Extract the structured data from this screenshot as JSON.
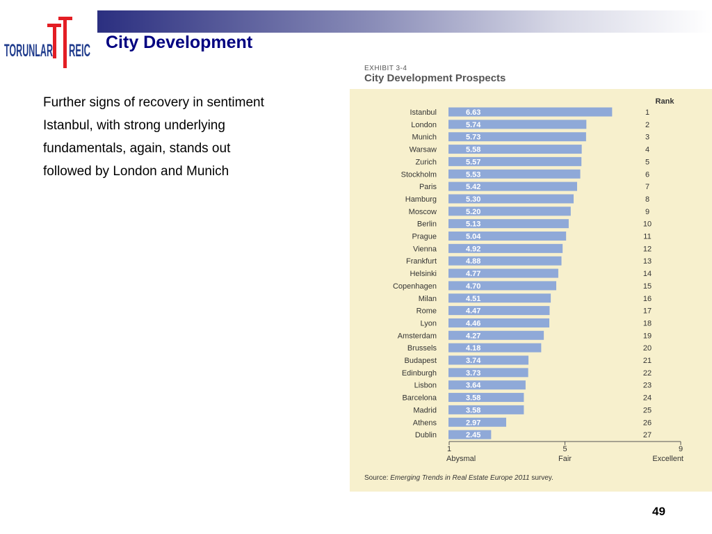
{
  "header": {
    "title": "City Development"
  },
  "logo": {
    "left_text": "TORUNLAR",
    "right_text": "REIC",
    "mark_color": "#e31e24",
    "text_color": "#1f3b8c"
  },
  "body": {
    "lines": [
      "Further signs of recovery in sentiment",
      "Istanbul, with strong underlying",
      "fundamentals, again, stands out",
      "followed by London and Munich"
    ]
  },
  "exhibit": {
    "label": "EXHIBIT 3-4",
    "title": "City Development Prospects"
  },
  "chart_data": {
    "type": "bar",
    "orientation": "horizontal",
    "categories": [
      "Istanbul",
      "London",
      "Munich",
      "Warsaw",
      "Zurich",
      "Stockholm",
      "Paris",
      "Hamburg",
      "Moscow",
      "Berlin",
      "Prague",
      "Vienna",
      "Frankfurt",
      "Helsinki",
      "Copenhagen",
      "Milan",
      "Rome",
      "Lyon",
      "Amsterdam",
      "Brussels",
      "Budapest",
      "Edinburgh",
      "Lisbon",
      "Barcelona",
      "Madrid",
      "Athens",
      "Dublin"
    ],
    "values": [
      6.63,
      5.74,
      5.73,
      5.58,
      5.57,
      5.53,
      5.42,
      5.3,
      5.2,
      5.13,
      5.04,
      4.92,
      4.88,
      4.77,
      4.7,
      4.51,
      4.47,
      4.46,
      4.27,
      4.18,
      3.74,
      3.73,
      3.64,
      3.58,
      3.58,
      2.97,
      2.45
    ],
    "value_labels": [
      "6.63",
      "5.74",
      "5.73",
      "5.58",
      "5.57",
      "5.53",
      "5.42",
      "5.30",
      "5.20",
      "5.13",
      "5.04",
      "4.92",
      "4.88",
      "4.77",
      "4.70",
      "4.51",
      "4.47",
      "4.46",
      "4.27",
      "4.18",
      "3.74",
      "3.73",
      "3.64",
      "3.58",
      "3.58",
      "2.97",
      "2.45"
    ],
    "ranks": [
      "1",
      "2",
      "3",
      "4",
      "5",
      "6",
      "7",
      "8",
      "9",
      "10",
      "11",
      "12",
      "13",
      "14",
      "15",
      "16",
      "17",
      "18",
      "19",
      "20",
      "21",
      "22",
      "23",
      "24",
      "25",
      "26",
      "27"
    ],
    "rank_header": "Rank",
    "xlim": [
      1,
      9
    ],
    "xticks": [
      "1",
      "5",
      "9"
    ],
    "xtick_labels": [
      "Abysmal",
      "Fair",
      "Excellent"
    ],
    "bar_color": "#8fa9d8",
    "background_color": "#f7f0cd",
    "source_prefix": "Source: ",
    "source_title": "Emerging Trends in Real Estate Europe 2011",
    "source_suffix": " survey."
  },
  "footer": {
    "page_number": "49"
  }
}
